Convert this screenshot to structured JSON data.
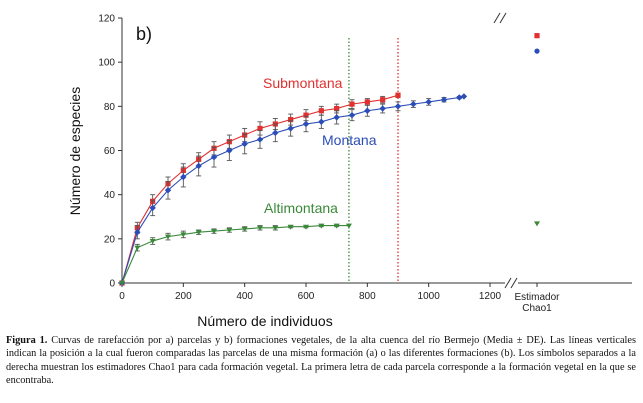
{
  "chart_data": {
    "type": "line",
    "panel_label": "b)",
    "xlabel": "Número de individuos",
    "ylabel": "Número de especies",
    "xlim": [
      0,
      1250
    ],
    "ylim": [
      0,
      120
    ],
    "x_ticks": [
      0,
      200,
      400,
      600,
      800,
      1000,
      1200
    ],
    "y_ticks": [
      0,
      20,
      40,
      60,
      80,
      100,
      120
    ],
    "grid": false,
    "error_bars": true,
    "series": [
      {
        "name": "Submontana",
        "color": "#e03030",
        "marker": "square",
        "x": [
          0,
          50,
          100,
          150,
          200,
          250,
          300,
          350,
          400,
          450,
          500,
          550,
          600,
          650,
          700,
          750,
          800,
          850,
          900
        ],
        "y": [
          0,
          25,
          37,
          45,
          51,
          56,
          61,
          64,
          67,
          70,
          72,
          74,
          76,
          78,
          79,
          81,
          82,
          83,
          85
        ],
        "err": [
          0,
          2.5,
          3,
          3,
          3,
          3,
          3,
          3,
          3,
          3,
          2.5,
          2.5,
          2.5,
          2,
          2,
          2,
          1.5,
          1.5,
          1
        ]
      },
      {
        "name": "Montana",
        "color": "#2b4db8",
        "marker": "diamond",
        "x": [
          0,
          50,
          100,
          150,
          200,
          250,
          300,
          350,
          400,
          450,
          500,
          550,
          600,
          650,
          700,
          750,
          800,
          850,
          900,
          950,
          1000,
          1050,
          1100,
          1115
        ],
        "y": [
          0,
          23,
          34,
          42,
          48,
          53,
          57,
          60,
          63,
          65,
          68,
          70,
          72,
          73,
          75,
          76,
          78,
          79,
          80,
          81,
          82,
          83,
          84,
          84.5
        ],
        "err": [
          0,
          3,
          3.5,
          4,
          4.5,
          4.5,
          4.5,
          4.5,
          4.5,
          4,
          4,
          3.5,
          3.5,
          3,
          3,
          2.5,
          2.5,
          2,
          2,
          1.5,
          1.5,
          1,
          0.5,
          0
        ]
      },
      {
        "name": "Altimontana",
        "color": "#3a8a3a",
        "marker": "triangle",
        "x": [
          0,
          50,
          100,
          150,
          200,
          250,
          300,
          350,
          400,
          450,
          500,
          550,
          600,
          650,
          700,
          740
        ],
        "y": [
          0,
          16,
          19,
          21,
          22,
          23,
          23.5,
          24,
          24.5,
          25,
          25,
          25.5,
          25.5,
          26,
          26,
          26
        ],
        "err": [
          0,
          1.5,
          1.5,
          1.5,
          1.5,
          1,
          1,
          1,
          1,
          1,
          1,
          0.5,
          0.5,
          0.5,
          0.5,
          0
        ]
      }
    ],
    "reference_lines": [
      {
        "x": 740,
        "color": "#3a8a3a",
        "style": "dotted"
      },
      {
        "x": 900,
        "color": "#e03030",
        "style": "dotted"
      }
    ],
    "estimator": {
      "label_line1": "Estimador",
      "label_line2": "Chao1",
      "values": [
        {
          "series": "Submontana",
          "y": 112,
          "color": "#e03030",
          "marker": "square"
        },
        {
          "series": "Montana",
          "y": 105,
          "color": "#2b4db8",
          "marker": "circle"
        },
        {
          "series": "Altimontana",
          "y": 27,
          "color": "#3a8a3a",
          "marker": "triangle"
        }
      ]
    }
  },
  "caption": {
    "label": "Figura 1.",
    "text": "Curvas de rarefacción por a) parcelas y b) formaciones vegetales, de la alta cuenca del río Bermejo (Media ± DE). Las líneas verticales indican la posición a la cual fueron comparadas las parcelas de una misma formación (a) o las diferentes formaciones (b). Los símbolos separados a la derecha muestran los estimadores Chao1 para cada formación vegetal. La primera letra de cada parcela corresponde a la formación vegetal en la que se encontraba."
  }
}
